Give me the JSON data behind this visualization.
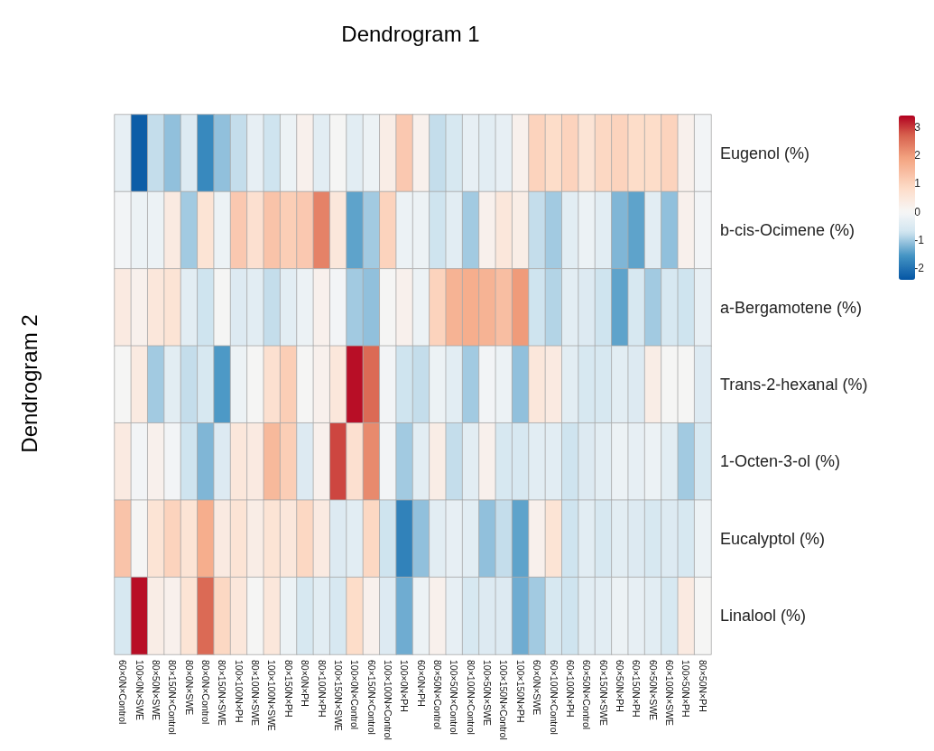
{
  "chart_data": {
    "type": "heatmap",
    "title": "Dendrogram 1",
    "ylabel": "Dendrogram 2",
    "categories": [
      "60×0N×Control",
      "100×0N×SWE",
      "80×50N×SWE",
      "80×150N×Control",
      "80×0N×SWE",
      "80×0N×Control",
      "80×150N×SWE",
      "100×100N×PH",
      "80×100N×SWE",
      "100×100N×SWE",
      "80×150N×PH",
      "80×0N×PH",
      "80×100N×PH",
      "100×150N×SWE",
      "100×0N×Control",
      "60×150N×Control",
      "100×100N×Control",
      "100×0N×PH",
      "60×0N×PH",
      "80×50N×Control",
      "100×50N×Control",
      "80×100N×Control",
      "100×50N×SWE",
      "100×150N×Control",
      "100×150N×PH",
      "60×0N×SWE",
      "60×100N×Control",
      "60×100N×PH",
      "60×50N×Control",
      "60×150N×SWE",
      "60×50N×PH",
      "60×150N×PH",
      "60×50N×SWE",
      "60×100N×SWE",
      "100×50N×PH",
      "80×50N×PH"
    ],
    "y_categories": [
      "Eugenol (%)",
      "b-cis-Ocimene (%)",
      "a-Bergamotene (%)",
      "Trans-2-hexanal (%)",
      "1-Octen-3-ol (%)",
      "Eucalyptol (%)",
      "Linalool (%)"
    ],
    "cells": [
      [
        -0.3,
        -2.3,
        -0.8,
        -1.1,
        -0.5,
        -1.7,
        -1.1,
        -0.8,
        -0.3,
        -0.7,
        -0.2,
        0.2,
        -0.4,
        0,
        -0.4,
        -0.2,
        0.3,
        1.2,
        0.2,
        -0.8,
        -0.6,
        -0.3,
        -0.4,
        -0.3,
        0.2,
        1.0,
        0.8,
        1.0,
        0.6,
        0.9,
        1.0,
        0.8,
        0.8,
        1.0,
        0.2,
        -0.1
      ],
      [
        -0.1,
        -0.2,
        -0.2,
        0.4,
        -1.0,
        0.6,
        -0.2,
        1.2,
        0.7,
        1.3,
        1.1,
        1.2,
        2.3,
        0.5,
        -1.4,
        -1.0,
        1.0,
        -0.2,
        -0.2,
        -0.7,
        -0.4,
        -1.0,
        0.2,
        0.5,
        0.3,
        -0.8,
        -1.0,
        -0.4,
        -0.2,
        -0.4,
        -1.2,
        -1.4,
        -0.4,
        -1.1,
        0.2,
        -0.1
      ],
      [
        0.4,
        0.2,
        0.5,
        0.6,
        -0.4,
        -0.7,
        0,
        -0.5,
        -0.4,
        -0.8,
        -0.4,
        -0.2,
        0.2,
        -0.1,
        -1.0,
        -1.1,
        0,
        0.2,
        -0.2,
        1.0,
        1.6,
        1.7,
        1.6,
        1.4,
        2.0,
        -0.7,
        -0.9,
        -0.4,
        -0.5,
        -0.7,
        -1.4,
        -0.6,
        -1.0,
        -0.6,
        -0.7,
        -0.3
      ],
      [
        0,
        0.4,
        -1.0,
        -0.4,
        -0.8,
        -0.6,
        -1.5,
        -0.2,
        0,
        0.7,
        1.1,
        0,
        0.2,
        0.5,
        3.3,
        2.6,
        -0.1,
        -0.7,
        -0.8,
        -0.2,
        -0.4,
        -1.0,
        -0.1,
        -0.2,
        -1.1,
        0.5,
        0.4,
        -0.4,
        -0.6,
        -0.6,
        -0.4,
        -0.5,
        0.3,
        0,
        0,
        -0.5
      ],
      [
        0.4,
        -0.1,
        0.2,
        -0.1,
        -0.7,
        -1.2,
        -0.5,
        0.5,
        0.4,
        1.5,
        1.1,
        -0.5,
        0.2,
        2.9,
        0.7,
        2.2,
        -0.1,
        -1.0,
        -0.4,
        0.3,
        -0.8,
        -0.4,
        0.2,
        -0.6,
        -0.6,
        -0.4,
        -0.4,
        -0.7,
        -0.5,
        -0.4,
        -0.2,
        -0.3,
        -0.2,
        -0.4,
        -1.0,
        -0.6
      ],
      [
        1.3,
        0,
        0.6,
        1.0,
        0.6,
        1.7,
        0.4,
        0.6,
        0.3,
        0.6,
        0.5,
        0.9,
        0.4,
        -0.5,
        -0.4,
        0.9,
        -0.7,
        -1.8,
        -1.1,
        -0.4,
        -0.3,
        -0.4,
        -1.1,
        -0.8,
        -1.4,
        0.2,
        0.6,
        -0.7,
        -0.4,
        -0.6,
        -0.4,
        -0.5,
        -0.6,
        -0.5,
        -0.6,
        -0.2
      ],
      [
        -0.6,
        3.3,
        0.3,
        0.2,
        0.6,
        2.6,
        0.9,
        0.5,
        0,
        0.5,
        -0.2,
        -0.6,
        -0.4,
        -0.6,
        0.8,
        0.2,
        -0.5,
        -1.3,
        -0.2,
        0.2,
        -0.3,
        -0.6,
        -0.5,
        -0.5,
        -1.3,
        -1.0,
        -0.6,
        -0.7,
        -0.4,
        -0.4,
        -0.2,
        -0.3,
        -0.4,
        -0.6,
        0.4,
        0
      ]
    ],
    "clim": [
      -2.4,
      3.4
    ],
    "cticks": [
      -2,
      -1,
      0,
      1,
      2,
      3
    ]
  }
}
